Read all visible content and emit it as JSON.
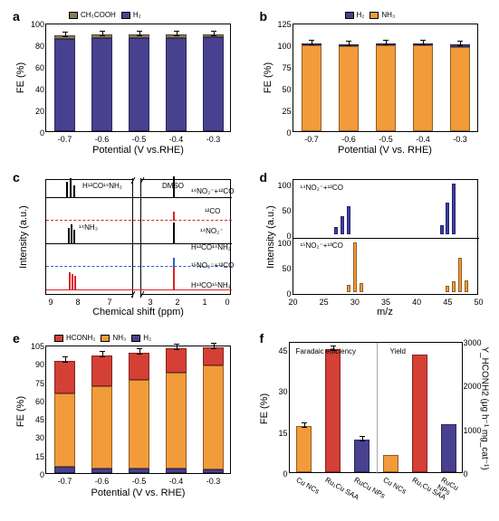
{
  "labels": {
    "fe": "FE (%)",
    "potential": "Potential (V vs. RHE)",
    "potential_a": "Potential (V vs.RHE)",
    "intensity": "Intensity (a.u.)",
    "chemshift": "Chemical shift (ppm)",
    "mz": "m/z",
    "yield": "Y_HCONH2 (μg h⁻¹ mg_cat⁻¹)"
  },
  "pa": {
    "legends": {
      "a": "CH₃COOH",
      "b": "H₂"
    },
    "colors": {
      "h2": "#48418f",
      "ch3cooh": "#8a7a5c"
    },
    "cats": [
      "-0.7",
      "-0.6",
      "-0.5",
      "-0.4",
      "-0.3"
    ],
    "h2": [
      85,
      86,
      86,
      86,
      87
    ],
    "ch3": [
      3,
      3,
      3,
      3,
      2
    ],
    "ylim": 100,
    "ytick": 20,
    "bar_rel_w": 0.55
  },
  "pb": {
    "legends": {
      "a": "H₂",
      "b": "NH₃"
    },
    "colors": {
      "nh3": "#f29b3a",
      "h2": "#48418f"
    },
    "cats": [
      "-0.7",
      "-0.6",
      "-0.5",
      "-0.4",
      "-0.3"
    ],
    "nh3": [
      99,
      98,
      99,
      99,
      97
    ],
    "h2": [
      2,
      2,
      2,
      2,
      3
    ],
    "ylim": 125,
    "ytick": 25,
    "bar_rel_w": 0.55
  },
  "pc": {
    "xticks": [
      "9",
      "8",
      "7",
      "3",
      "2",
      "1",
      "0"
    ],
    "annot": [
      "H¹²CO¹⁴NH₂",
      "DMSO",
      "¹⁴NO₂⁻+¹²CO",
      "¹²CO",
      "¹⁴NH₃",
      "¹⁴NO₂⁻",
      "H¹²CO¹⁴NH₂",
      "¹⁵NO₂⁻+¹³CO",
      "H¹³CO¹⁵NH₂"
    ],
    "colors": {
      "t1": "#d22",
      "t2": "#2a5fc9",
      "t3": "#000",
      "t4": "#d22",
      "t5": "#000"
    }
  },
  "pd": {
    "xticks": [
      "20",
      "25",
      "30",
      "35",
      "40",
      "45",
      "50"
    ],
    "ytick": 50,
    "ylim": 100,
    "top_label": "¹⁴NO₂⁻+¹²CO",
    "bot_label": "¹⁵NO₂⁻+¹³CO",
    "top_color": "#3d3da8",
    "bot_color": "#f29b3a",
    "top_bars": [
      [
        27,
        15
      ],
      [
        28,
        35
      ],
      [
        29,
        55
      ],
      [
        44,
        18
      ],
      [
        45,
        63
      ],
      [
        46,
        100
      ]
    ],
    "bot_bars": [
      [
        29,
        15
      ],
      [
        30,
        98
      ],
      [
        31,
        18
      ],
      [
        45,
        12
      ],
      [
        46,
        22
      ],
      [
        47,
        68
      ],
      [
        48,
        23
      ]
    ]
  },
  "pe": {
    "legends": {
      "a": "HCONH₂",
      "b": "NH₃",
      "c": "H₂"
    },
    "colors": {
      "hconh2": "#d43f36",
      "nh3": "#f29b3a",
      "h2": "#48418f"
    },
    "cats": [
      "-0.7",
      "-0.6",
      "-0.5",
      "-0.4",
      "-0.3"
    ],
    "h2": [
      5,
      4,
      4,
      4,
      3
    ],
    "nh3": [
      60,
      67,
      72,
      78,
      85
    ],
    "hconh2": [
      27,
      25,
      22,
      20,
      15
    ],
    "ylim": 105,
    "ytick": 15,
    "bar_rel_w": 0.55
  },
  "pf": {
    "sec": {
      "a": "Faradaic efficiency",
      "b": "Yield"
    },
    "cats": [
      "Cu NCs",
      "Ru₁Cu SAA",
      "RuCu NPs"
    ],
    "colors": {
      "cu": "#f29b3a",
      "rucu": "#d43f36",
      "runp": "#48418f"
    },
    "fe": [
      17,
      45,
      12
    ],
    "yield": [
      400,
      2700,
      1100
    ],
    "y1_lim": 48,
    "y1_tick": 15,
    "y2_lim": 3000,
    "y2_tick": 1000
  }
}
